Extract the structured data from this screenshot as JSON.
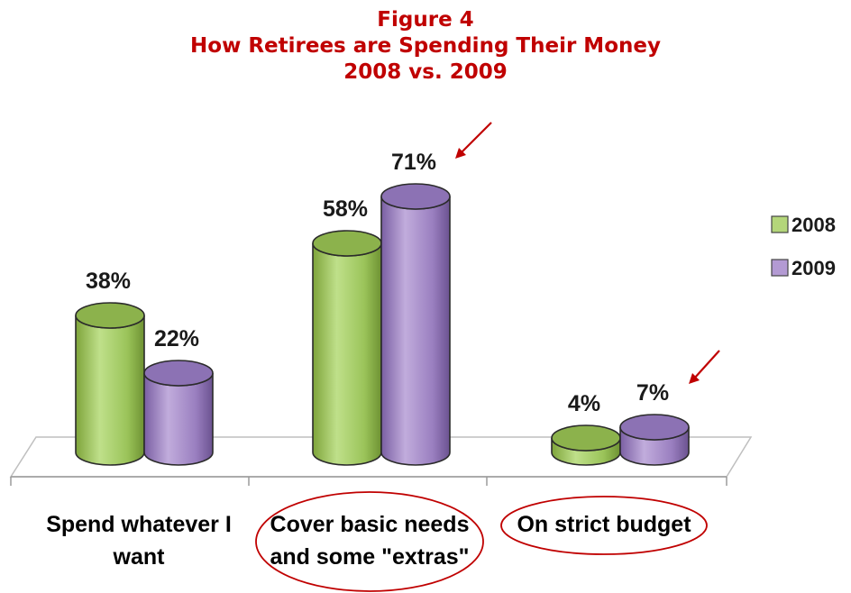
{
  "chart_data": {
    "type": "bar",
    "title": [
      "Figure 4",
      "How Retirees are Spending Their Money",
      "2008 vs. 2009"
    ],
    "categories": [
      [
        "Spend whatever I",
        "want"
      ],
      [
        "Cover basic needs",
        "and some \"extras\""
      ],
      [
        "On strict budget"
      ]
    ],
    "series": [
      {
        "name": "2008",
        "values": [
          38,
          58,
          4
        ],
        "labels": [
          "38%",
          "58%",
          "4%"
        ],
        "color": "#9bc45a"
      },
      {
        "name": "2009",
        "values": [
          22,
          71,
          7
        ],
        "labels": [
          "22%",
          "71%",
          "7%"
        ],
        "color": "#9a7fc0"
      }
    ],
    "ylim": [
      0,
      100
    ],
    "grid": false,
    "legend": "right",
    "highlighted_categories": [
      1,
      2
    ],
    "annotation_arrows_on": [
      "2009-1",
      "2009-2"
    ],
    "colors": {
      "title": "#c00000",
      "highlight": "#c00000"
    }
  }
}
